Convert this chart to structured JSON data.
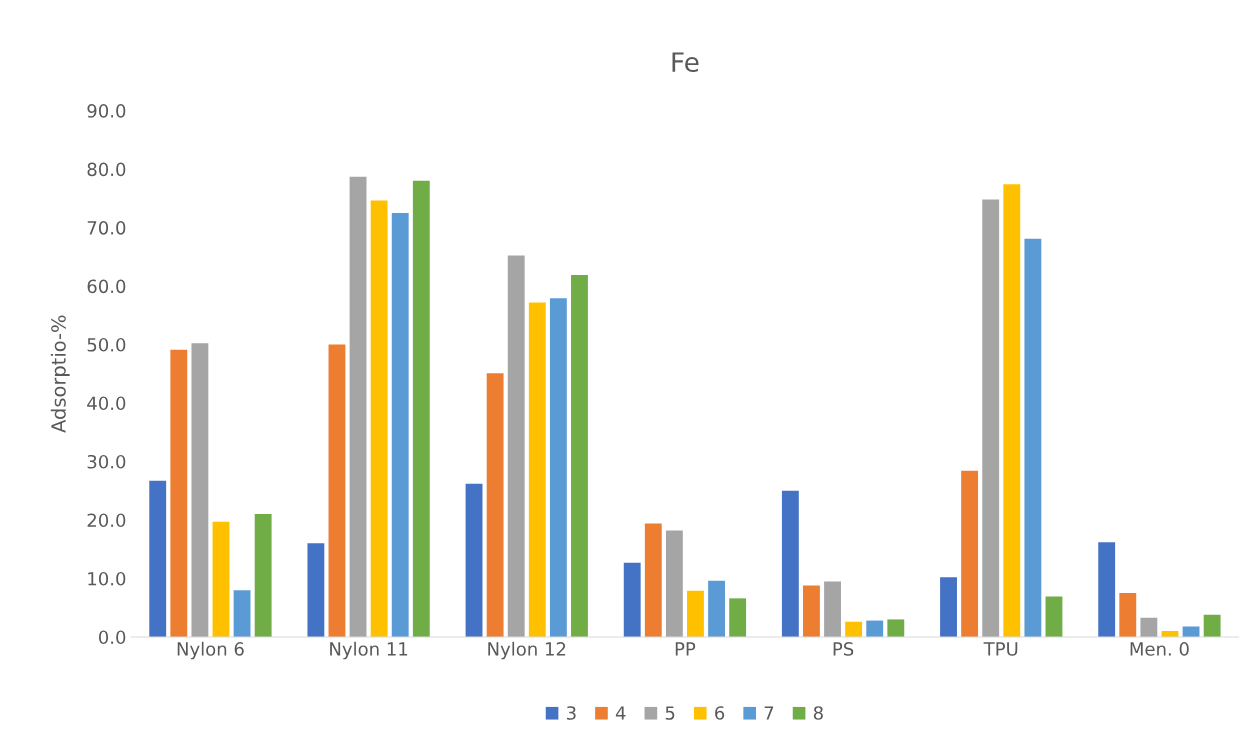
{
  "chart_data": {
    "type": "bar",
    "title": "Fe",
    "ylabel": "Adsorptio-%",
    "categories": [
      "Nylon 6",
      "Nylon 11",
      "Nylon 12",
      "PP",
      "PS",
      "TPU",
      "Men. 0"
    ],
    "series": [
      {
        "name": "3",
        "color": "#4472c4",
        "values": [
          26.7,
          16.0,
          26.2,
          12.7,
          25.0,
          10.2,
          16.2
        ]
      },
      {
        "name": "4",
        "color": "#ed7d31",
        "values": [
          49.1,
          50.0,
          45.1,
          19.4,
          8.8,
          28.4,
          7.5
        ]
      },
      {
        "name": "5",
        "color": "#a5a5a5",
        "values": [
          50.2,
          78.7,
          65.2,
          18.2,
          9.5,
          74.8,
          3.3
        ]
      },
      {
        "name": "6",
        "color": "#ffc000",
        "values": [
          19.7,
          74.6,
          57.2,
          7.9,
          2.6,
          77.4,
          1.0
        ]
      },
      {
        "name": "7",
        "color": "#5b9bd5",
        "values": [
          8.0,
          72.5,
          57.9,
          9.6,
          2.8,
          68.1,
          1.8
        ]
      },
      {
        "name": "8",
        "color": "#70ad47",
        "values": [
          21.0,
          78.0,
          61.9,
          6.6,
          3.0,
          6.9,
          3.8
        ]
      }
    ],
    "ylim": [
      0,
      90
    ],
    "yticks": [
      {
        "value": 0,
        "label": "0.0"
      },
      {
        "value": 10,
        "label": "10.0"
      },
      {
        "value": 20,
        "label": "20.0"
      },
      {
        "value": 30,
        "label": "30.0"
      },
      {
        "value": 40,
        "label": "40.0"
      },
      {
        "value": 50,
        "label": "50.0"
      },
      {
        "value": 60,
        "label": "60.0"
      },
      {
        "value": 70,
        "label": "70.0"
      },
      {
        "value": 80,
        "label": "80.0"
      },
      {
        "value": 90,
        "label": "90.0"
      }
    ],
    "grid": false,
    "legend": "bottom"
  }
}
